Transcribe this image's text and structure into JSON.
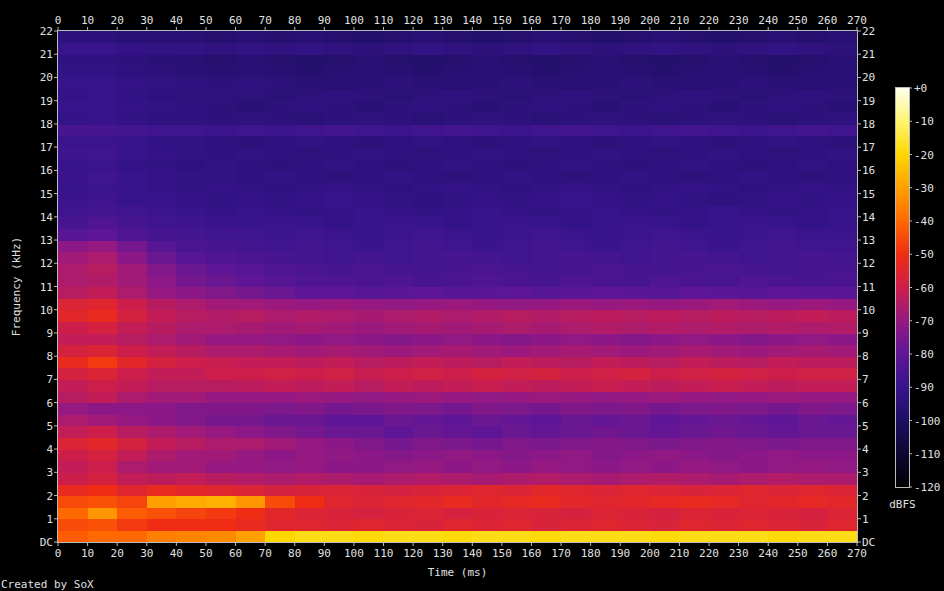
{
  "chart_data": {
    "type": "heatmap",
    "xlabel": "Time (ms)",
    "ylabel": "Frequency (kHz)",
    "credit": "Created by SoX",
    "xlim": [
      0,
      270
    ],
    "ylim": [
      0,
      22
    ],
    "xticks": [
      0,
      10,
      20,
      30,
      40,
      50,
      60,
      70,
      80,
      90,
      100,
      110,
      120,
      130,
      140,
      150,
      160,
      170,
      180,
      190,
      200,
      210,
      220,
      230,
      240,
      250,
      260,
      270
    ],
    "yticks": [
      {
        "value": 0,
        "label": "DC"
      },
      1,
      2,
      3,
      4,
      5,
      6,
      7,
      8,
      9,
      10,
      11,
      12,
      13,
      14,
      15,
      16,
      17,
      18,
      19,
      20,
      21,
      22
    ],
    "x_bins": [
      0,
      10,
      20,
      30,
      40,
      50,
      60,
      70,
      80,
      90,
      100,
      110,
      120,
      130,
      140,
      150,
      160,
      170,
      180,
      190,
      200,
      210,
      220,
      230,
      240,
      250,
      260,
      270
    ],
    "y_bins": [
      0,
      0.5,
      1,
      1.5,
      2,
      2.5,
      3,
      3.5,
      4,
      4.5,
      5,
      5.5,
      6,
      6.5,
      7,
      7.5,
      8,
      8.5,
      9,
      9.5,
      10,
      10.5,
      11,
      11.5,
      12,
      12.5,
      13,
      13.5,
      14,
      14.5,
      15,
      15.5,
      16,
      16.5,
      17,
      17.5,
      18,
      18.5,
      19,
      19.5,
      20,
      20.5,
      21,
      21.5,
      22
    ],
    "cells": [
      [
        -42,
        -40,
        -40,
        -36,
        -35,
        -34,
        -30,
        -20,
        -18,
        -18,
        -19,
        -18,
        -18,
        -19,
        -18,
        -18,
        -19,
        -18,
        -18,
        -18,
        -19,
        -18,
        -18,
        -18,
        -19,
        -18,
        -18
      ],
      [
        -45,
        -44,
        -48,
        -50,
        -50,
        -50,
        -52,
        -55,
        -55,
        -56,
        -55,
        -56,
        -57,
        -55,
        -56,
        -55,
        -57,
        -56,
        -55,
        -56,
        -57,
        -55,
        -56,
        -55,
        -56,
        -57,
        -55
      ],
      [
        -40,
        -32,
        -42,
        -44,
        -46,
        -48,
        -50,
        -54,
        -56,
        -57,
        -58,
        -57,
        -56,
        -58,
        -57,
        -56,
        -57,
        -58,
        -56,
        -57,
        -58,
        -56,
        -57,
        -56,
        -57,
        -58,
        -56
      ],
      [
        -45,
        -44,
        -46,
        -30,
        -28,
        -27,
        -32,
        -45,
        -50,
        -55,
        -56,
        -55,
        -54,
        -52,
        -54,
        -53,
        -52,
        -54,
        -55,
        -54,
        -53,
        -52,
        -53,
        -55,
        -54,
        -53,
        -54
      ],
      [
        -52,
        -50,
        -55,
        -52,
        -54,
        -55,
        -56,
        -58,
        -57,
        -56,
        -57,
        -58,
        -57,
        -56,
        -55,
        -56,
        -54,
        -55,
        -56,
        -55,
        -56,
        -57,
        -56,
        -55,
        -56,
        -55,
        -56
      ],
      [
        -60,
        -58,
        -62,
        -63,
        -62,
        -64,
        -65,
        -66,
        -65,
        -66,
        -67,
        -66,
        -65,
        -66,
        -67,
        -66,
        -65,
        -66,
        -67,
        -66,
        -65,
        -66,
        -67,
        -66,
        -65,
        -66,
        -66
      ],
      [
        -62,
        -60,
        -66,
        -68,
        -68,
        -70,
        -70,
        -71,
        -70,
        -72,
        -72,
        -71,
        -70,
        -72,
        -71,
        -72,
        -70,
        -71,
        -72,
        -71,
        -72,
        -70,
        -71,
        -72,
        -71,
        -70,
        -71
      ],
      [
        -60,
        -58,
        -62,
        -66,
        -68,
        -68,
        -70,
        -72,
        -70,
        -71,
        -72,
        -73,
        -72,
        -71,
        -72,
        -73,
        -72,
        -71,
        -73,
        -72,
        -71,
        -72,
        -73,
        -72,
        -71,
        -72,
        -72
      ],
      [
        -56,
        -54,
        -58,
        -62,
        -64,
        -66,
        -66,
        -68,
        -70,
        -72,
        -74,
        -76,
        -74,
        -75,
        -76,
        -74,
        -75,
        -74,
        -73,
        -74,
        -75,
        -74,
        -73,
        -74,
        -75,
        -74,
        -74
      ],
      [
        -62,
        -60,
        -64,
        -66,
        -68,
        -70,
        -72,
        -74,
        -76,
        -78,
        -78,
        -80,
        -78,
        -79,
        -80,
        -78,
        -79,
        -78,
        -77,
        -78,
        -79,
        -78,
        -77,
        -78,
        -79,
        -78,
        -78
      ],
      [
        -66,
        -68,
        -70,
        -72,
        -74,
        -76,
        -76,
        -78,
        -78,
        -80,
        -80,
        -78,
        -79,
        -80,
        -78,
        -79,
        -80,
        -78,
        -79,
        -78,
        -80,
        -79,
        -78,
        -79,
        -80,
        -78,
        -79
      ],
      [
        -70,
        -72,
        -72,
        -72,
        -74,
        -74,
        -74,
        -75,
        -74,
        -76,
        -75,
        -74,
        -75,
        -76,
        -74,
        -75,
        -76,
        -74,
        -75,
        -74,
        -76,
        -75,
        -74,
        -75,
        -76,
        -74,
        -75
      ],
      [
        -64,
        -62,
        -66,
        -68,
        -68,
        -70,
        -70,
        -70,
        -69,
        -70,
        -71,
        -70,
        -69,
        -70,
        -71,
        -70,
        -69,
        -70,
        -71,
        -70,
        -69,
        -70,
        -71,
        -70,
        -69,
        -70,
        -70
      ],
      [
        -62,
        -60,
        -62,
        -64,
        -64,
        -64,
        -63,
        -62,
        -63,
        -62,
        -64,
        -62,
        -63,
        -62,
        -61,
        -62,
        -63,
        -62,
        -61,
        -62,
        -63,
        -62,
        -61,
        -62,
        -63,
        -62,
        -62
      ],
      [
        -58,
        -56,
        -60,
        -62,
        -62,
        -60,
        -60,
        -59,
        -60,
        -59,
        -61,
        -60,
        -59,
        -60,
        -58,
        -59,
        -58,
        -60,
        -59,
        -58,
        -60,
        -59,
        -58,
        -59,
        -60,
        -59,
        -59
      ],
      [
        -52,
        -48,
        -54,
        -58,
        -60,
        -61,
        -62,
        -62,
        -63,
        -62,
        -64,
        -63,
        -62,
        -63,
        -64,
        -62,
        -63,
        -64,
        -62,
        -63,
        -64,
        -62,
        -63,
        -64,
        -62,
        -63,
        -63
      ],
      [
        -58,
        -56,
        -60,
        -62,
        -64,
        -66,
        -66,
        -67,
        -68,
        -67,
        -68,
        -69,
        -68,
        -67,
        -68,
        -69,
        -68,
        -67,
        -68,
        -69,
        -68,
        -67,
        -68,
        -69,
        -68,
        -67,
        -68
      ],
      [
        -62,
        -62,
        -64,
        -66,
        -68,
        -70,
        -70,
        -71,
        -72,
        -71,
        -72,
        -73,
        -72,
        -71,
        -72,
        -73,
        -72,
        -71,
        -72,
        -73,
        -72,
        -71,
        -72,
        -73,
        -72,
        -71,
        -72
      ],
      [
        -60,
        -58,
        -62,
        -64,
        -66,
        -66,
        -67,
        -68,
        -67,
        -68,
        -69,
        -68,
        -67,
        -68,
        -67,
        -66,
        -67,
        -66,
        -65,
        -66,
        -65,
        -66,
        -65,
        -66,
        -65,
        -66,
        -65
      ],
      [
        -54,
        -52,
        -58,
        -62,
        -64,
        -65,
        -64,
        -66,
        -65,
        -66,
        -67,
        -66,
        -65,
        -66,
        -65,
        -64,
        -65,
        -64,
        -63,
        -64,
        -63,
        -64,
        -63,
        -64,
        -63,
        -62,
        -63
      ],
      [
        -56,
        -55,
        -60,
        -64,
        -66,
        -68,
        -68,
        -69,
        -70,
        -69,
        -70,
        -71,
        -70,
        -69,
        -70,
        -71,
        -70,
        -69,
        -70,
        -69,
        -70,
        -69,
        -68,
        -69,
        -70,
        -69,
        -70
      ],
      [
        -64,
        -62,
        -66,
        -70,
        -72,
        -74,
        -76,
        -78,
        -80,
        -80,
        -82,
        -81,
        -80,
        -82,
        -81,
        -80,
        -82,
        -81,
        -80,
        -81,
        -82,
        -80,
        -81,
        -82,
        -80,
        -81,
        -81
      ],
      [
        -66,
        -65,
        -68,
        -72,
        -76,
        -78,
        -80,
        -82,
        -84,
        -84,
        -85,
        -84,
        -86,
        -85,
        -84,
        -85,
        -86,
        -84,
        -85,
        -86,
        -84,
        -85,
        -86,
        -84,
        -85,
        -86,
        -85
      ],
      [
        -66,
        -64,
        -68,
        -74,
        -78,
        -80,
        -82,
        -84,
        -85,
        -86,
        -85,
        -86,
        -87,
        -86,
        -85,
        -86,
        -87,
        -86,
        -85,
        -86,
        -87,
        -86,
        -85,
        -86,
        -87,
        -86,
        -86
      ],
      [
        -68,
        -66,
        -72,
        -78,
        -82,
        -84,
        -85,
        -86,
        -87,
        -88,
        -87,
        -88,
        -87,
        -86,
        -87,
        -88,
        -87,
        -86,
        -87,
        -88,
        -87,
        -86,
        -87,
        -88,
        -87,
        -86,
        -87
      ],
      [
        -72,
        -70,
        -76,
        -82,
        -85,
        -86,
        -87,
        -88,
        -87,
        -88,
        -89,
        -88,
        -87,
        -88,
        -89,
        -88,
        -87,
        -88,
        -89,
        -88,
        -87,
        -88,
        -89,
        -88,
        -87,
        -88,
        -88
      ],
      [
        -82,
        -80,
        -84,
        -86,
        -87,
        -88,
        -88,
        -89,
        -88,
        -89,
        -90,
        -89,
        -88,
        -89,
        -90,
        -89,
        -88,
        -89,
        -90,
        -89,
        -88,
        -89,
        -90,
        -89,
        -88,
        -89,
        -89
      ],
      [
        -86,
        -84,
        -86,
        -88,
        -88,
        -89,
        -90,
        -89,
        -90,
        -91,
        -90,
        -89,
        -90,
        -91,
        -90,
        -89,
        -90,
        -91,
        -90,
        -89,
        -90,
        -91,
        -90,
        -89,
        -90,
        -91,
        -90
      ],
      [
        -88,
        -87,
        -88,
        -89,
        -90,
        -91,
        -90,
        -91,
        -92,
        -91,
        -90,
        -91,
        -92,
        -91,
        -90,
        -91,
        -92,
        -91,
        -90,
        -91,
        -92,
        -91,
        -90,
        -91,
        -92,
        -91,
        -90
      ],
      [
        -89,
        -88,
        -90,
        -90,
        -91,
        -92,
        -91,
        -92,
        -91,
        -90,
        -91,
        -92,
        -93,
        -92,
        -91,
        -92,
        -91,
        -90,
        -91,
        -92,
        -91,
        -92,
        -93,
        -92,
        -91,
        -92,
        -91
      ],
      [
        -90,
        -89,
        -90,
        -91,
        -92,
        -91,
        -92,
        -93,
        -92,
        -91,
        -92,
        -93,
        -92,
        -91,
        -92,
        -93,
        -92,
        -91,
        -92,
        -93,
        -92,
        -91,
        -92,
        -93,
        -92,
        -91,
        -92
      ],
      [
        -89,
        -88,
        -90,
        -91,
        -92,
        -92,
        -93,
        -92,
        -93,
        -94,
        -93,
        -92,
        -93,
        -94,
        -93,
        -92,
        -93,
        -94,
        -93,
        -92,
        -93,
        -94,
        -93,
        -92,
        -93,
        -94,
        -93
      ],
      [
        -90,
        -89,
        -91,
        -92,
        -93,
        -92,
        -93,
        -94,
        -93,
        -92,
        -93,
        -94,
        -93,
        -92,
        -93,
        -94,
        -93,
        -92,
        -93,
        -94,
        -93,
        -92,
        -93,
        -94,
        -93,
        -92,
        -93
      ],
      [
        -88,
        -88,
        -90,
        -91,
        -92,
        -93,
        -92,
        -93,
        -94,
        -93,
        -92,
        -93,
        -94,
        -93,
        -92,
        -93,
        -94,
        -93,
        -92,
        -93,
        -94,
        -93,
        -92,
        -93,
        -94,
        -93,
        -92
      ],
      [
        -89,
        -89,
        -90,
        -92,
        -92,
        -93,
        -94,
        -93,
        -92,
        -93,
        -94,
        -93,
        -92,
        -93,
        -94,
        -93,
        -92,
        -93,
        -94,
        -93,
        -92,
        -93,
        -94,
        -93,
        -92,
        -93,
        -94
      ],
      [
        -86,
        -86,
        -87,
        -88,
        -88,
        -89,
        -88,
        -89,
        -88,
        -87,
        -88,
        -89,
        -88,
        -87,
        -88,
        -89,
        -88,
        -87,
        -88,
        -89,
        -88,
        -87,
        -88,
        -89,
        -88,
        -87,
        -88
      ],
      [
        -91,
        -90,
        -92,
        -93,
        -93,
        -94,
        -93,
        -94,
        -95,
        -94,
        -93,
        -94,
        -95,
        -94,
        -93,
        -94,
        -95,
        -94,
        -93,
        -94,
        -95,
        -94,
        -93,
        -94,
        -95,
        -94,
        -93
      ],
      [
        -90,
        -90,
        -91,
        -92,
        -93,
        -94,
        -95,
        -94,
        -93,
        -94,
        -95,
        -94,
        -93,
        -94,
        -95,
        -94,
        -93,
        -94,
        -95,
        -94,
        -93,
        -94,
        -95,
        -94,
        -93,
        -94,
        -95
      ],
      [
        -91,
        -90,
        -92,
        -93,
        -94,
        -93,
        -94,
        -95,
        -94,
        -93,
        -94,
        -95,
        -94,
        -93,
        -94,
        -95,
        -94,
        -93,
        -94,
        -95,
        -94,
        -93,
        -94,
        -95,
        -94,
        -93,
        -94
      ],
      [
        -90,
        -90,
        -91,
        -92,
        -93,
        -94,
        -93,
        -94,
        -95,
        -96,
        -95,
        -94,
        -95,
        -96,
        -95,
        -94,
        -95,
        -96,
        -95,
        -94,
        -95,
        -96,
        -95,
        -94,
        -95,
        -96,
        -95
      ],
      [
        -92,
        -92,
        -93,
        -94,
        -95,
        -96,
        -95,
        -96,
        -97,
        -96,
        -95,
        -96,
        -97,
        -96,
        -95,
        -96,
        -97,
        -96,
        -95,
        -96,
        -97,
        -96,
        -95,
        -96,
        -97,
        -96,
        -95
      ],
      [
        -93,
        -93,
        -94,
        -95,
        -96,
        -97,
        -96,
        -97,
        -98,
        -97,
        -96,
        -97,
        -98,
        -97,
        -96,
        -97,
        -98,
        -97,
        -96,
        -97,
        -98,
        -97,
        -96,
        -97,
        -98,
        -97,
        -96
      ],
      [
        -90,
        -90,
        -91,
        -92,
        -92,
        -93,
        -92,
        -93,
        -92,
        -93,
        -94,
        -93,
        -92,
        -93,
        -94,
        -93,
        -92,
        -93,
        -94,
        -93,
        -92,
        -93,
        -94,
        -93,
        -92,
        -93,
        -94
      ],
      [
        -94,
        -94,
        -95,
        -96,
        -96,
        -97,
        -96,
        -97,
        -96,
        -97,
        -98,
        -97,
        -96,
        -97,
        -98,
        -97,
        -96,
        -97,
        -98,
        -97,
        -96,
        -97,
        -98,
        -97,
        -96,
        -97,
        -96
      ]
    ],
    "colorbar": {
      "label": "dBFS",
      "range": [
        -120,
        0
      ],
      "ticks": [
        {
          "value": 0,
          "label": "+0"
        },
        -10,
        -20,
        -30,
        -40,
        -50,
        -60,
        -70,
        -80,
        -90,
        -100,
        -110,
        -120
      ]
    }
  }
}
